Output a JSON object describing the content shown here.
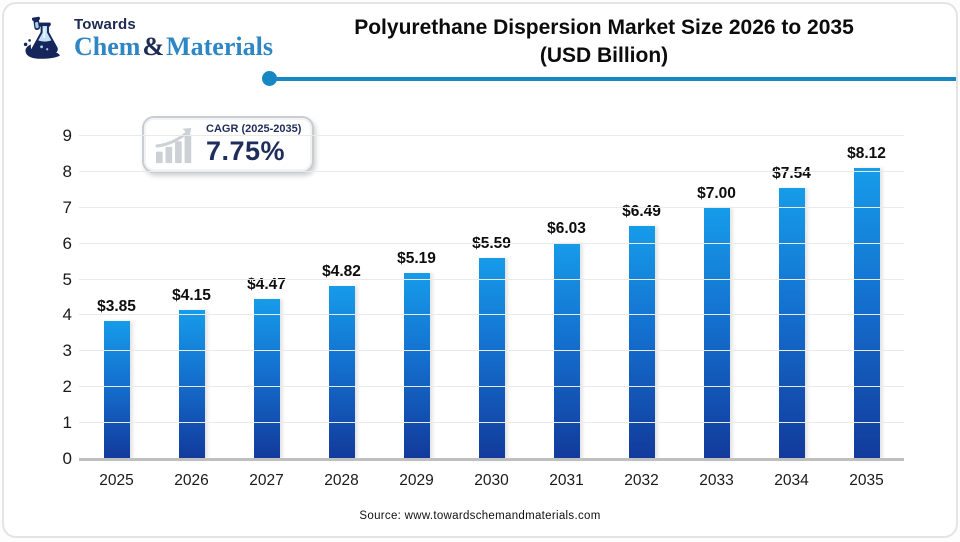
{
  "brand": {
    "towards": "Towards",
    "chem": "Chem",
    "amp": "&",
    "materials": "Materials"
  },
  "header": {
    "title_line1": "Polyurethane Dispersion Market Size 2026 to 2035",
    "title_line2": "(USD Billion)"
  },
  "cagr": {
    "label": "CAGR (2025-2035)",
    "value": "7.75%"
  },
  "source": "Source: www.towardschemandmaterials.com",
  "colors": {
    "accent_line": "#1787c4",
    "bar_top": "#169ce9",
    "bar_bottom": "#123a9b",
    "navy_text": "#1f2d5c",
    "brand_blue": "#2e86c4"
  },
  "chart_data": {
    "type": "bar",
    "title": "Polyurethane Dispersion Market Size 2026 to 2035 (USD Billion)",
    "categories": [
      "2025",
      "2026",
      "2027",
      "2028",
      "2029",
      "2030",
      "2031",
      "2032",
      "2033",
      "2034",
      "2035"
    ],
    "values": [
      3.85,
      4.15,
      4.47,
      4.82,
      5.19,
      5.59,
      6.03,
      6.49,
      7.0,
      7.54,
      8.12
    ],
    "value_labels": [
      "$3.85",
      "$4.15",
      "$4.47",
      "$4.82",
      "$5.19",
      "$5.59",
      "$6.03",
      "$6.49",
      "$7.00",
      "$7.54",
      "$8.12"
    ],
    "xlabel": "",
    "ylabel": "",
    "ylim": [
      0,
      9
    ],
    "ytick_step": 1,
    "grid": true,
    "legend": false
  }
}
